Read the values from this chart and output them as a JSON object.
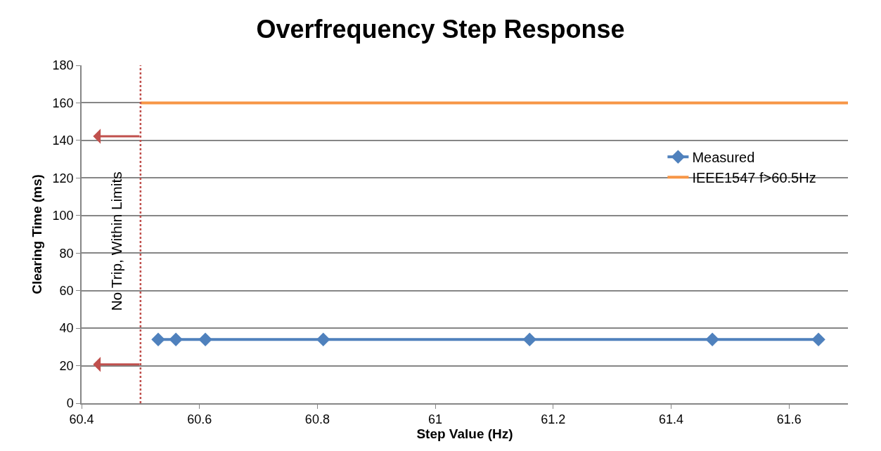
{
  "chart_data": {
    "type": "line",
    "title": "Overfrequency Step Response",
    "xlabel": "Step Value (Hz)",
    "ylabel": "Clearing Time (ms)",
    "x": [
      60.53,
      60.56,
      60.61,
      60.81,
      61.16,
      61.47,
      61.65
    ],
    "series": [
      {
        "name": "Measured",
        "color": "#4f81bd",
        "values": [
          34,
          34,
          34,
          34,
          34,
          34,
          34
        ],
        "marker": "diamond"
      },
      {
        "name": "IEEE1547 f>60.5Hz",
        "color": "#f79646",
        "x": [
          60.5,
          61.7
        ],
        "values": [
          160,
          160
        ],
        "marker": "none"
      }
    ],
    "xlim": [
      60.4,
      61.7
    ],
    "xticks": [
      60.4,
      60.6,
      60.8,
      61,
      61.2,
      61.4,
      61.6
    ],
    "ylim": [
      0,
      180
    ],
    "yticks": [
      0,
      20,
      40,
      60,
      80,
      100,
      120,
      140,
      160,
      180
    ],
    "grid": "y",
    "legend": "right",
    "ref_lines": [
      {
        "axis": "x",
        "value": 60.5,
        "color": "#c0504d",
        "line_style": "dotted"
      }
    ],
    "annotations": [
      "No Trip, Within Limits"
    ]
  }
}
